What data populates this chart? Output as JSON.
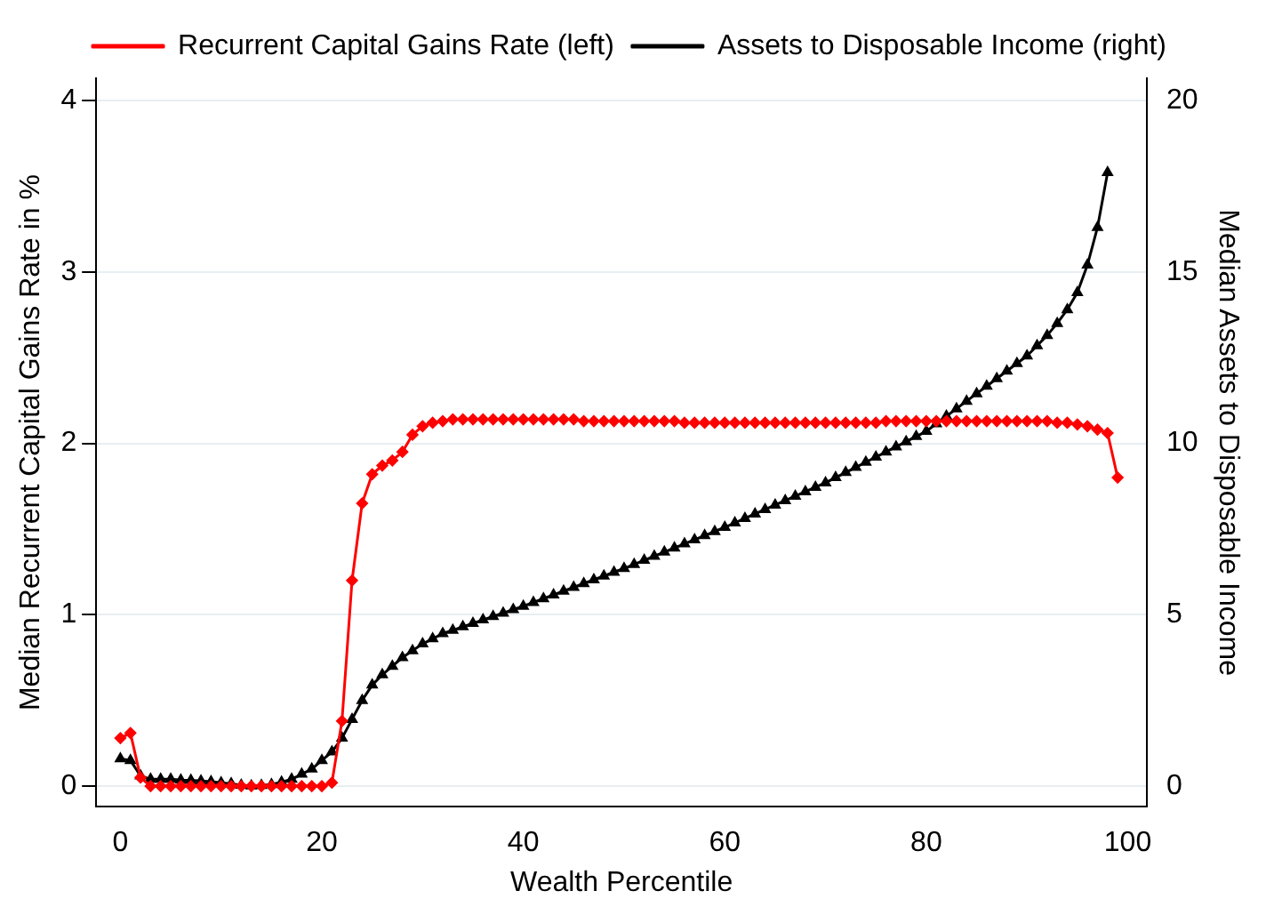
{
  "chart_data": {
    "type": "line",
    "xlabel": "Wealth Percentile",
    "ylabel": "Median Recurrent Capital Gains Rate in %",
    "y2label": "Median Assets to Disposable Income",
    "x": [
      0,
      1,
      2,
      3,
      4,
      5,
      6,
      7,
      8,
      9,
      10,
      11,
      12,
      13,
      14,
      15,
      16,
      17,
      18,
      19,
      20,
      21,
      22,
      23,
      24,
      25,
      26,
      27,
      28,
      29,
      30,
      31,
      32,
      33,
      34,
      35,
      36,
      37,
      38,
      39,
      40,
      41,
      42,
      43,
      44,
      45,
      46,
      47,
      48,
      49,
      50,
      51,
      52,
      53,
      54,
      55,
      56,
      57,
      58,
      59,
      60,
      61,
      62,
      63,
      64,
      65,
      66,
      67,
      68,
      69,
      70,
      71,
      72,
      73,
      74,
      75,
      76,
      77,
      78,
      79,
      80,
      81,
      82,
      83,
      84,
      85,
      86,
      87,
      88,
      89,
      90,
      91,
      92,
      93,
      94,
      95,
      96,
      97,
      98,
      99
    ],
    "series": [
      {
        "name": "Recurrent Capital Gains Rate (left)",
        "color": "#ff0000",
        "marker": "diamond",
        "values": [
          0.28,
          0.31,
          0.05,
          0,
          0,
          0,
          0,
          0,
          0,
          0,
          0,
          0,
          0,
          0,
          0,
          0,
          0,
          0,
          0,
          0,
          0,
          0.02,
          0.38,
          1.2,
          1.65,
          1.82,
          1.87,
          1.9,
          1.95,
          2.05,
          2.1,
          2.12,
          2.13,
          2.14,
          2.14,
          2.14,
          2.14,
          2.14,
          2.14,
          2.14,
          2.14,
          2.14,
          2.14,
          2.14,
          2.14,
          2.14,
          2.13,
          2.13,
          2.13,
          2.13,
          2.13,
          2.13,
          2.13,
          2.13,
          2.13,
          2.13,
          2.12,
          2.12,
          2.12,
          2.12,
          2.12,
          2.12,
          2.12,
          2.12,
          2.12,
          2.12,
          2.12,
          2.12,
          2.12,
          2.12,
          2.12,
          2.12,
          2.12,
          2.12,
          2.12,
          2.12,
          2.13,
          2.13,
          2.13,
          2.13,
          2.13,
          2.13,
          2.13,
          2.13,
          2.13,
          2.13,
          2.13,
          2.13,
          2.13,
          2.13,
          2.13,
          2.13,
          2.13,
          2.12,
          2.12,
          2.11,
          2.1,
          2.08,
          2.06,
          1.8
        ]
      },
      {
        "name": "Assets to Disposable Income (right)",
        "color": "#000000",
        "marker": "triangle",
        "axis": "y2",
        "values": [
          0.8,
          0.75,
          0.3,
          0.2,
          0.2,
          0.2,
          0.18,
          0.17,
          0.15,
          0.13,
          0.1,
          0.07,
          0.03,
          0.01,
          0.02,
          0.05,
          0.12,
          0.2,
          0.35,
          0.5,
          0.75,
          1.0,
          1.4,
          1.95,
          2.5,
          2.95,
          3.25,
          3.5,
          3.75,
          3.95,
          4.15,
          4.3,
          4.45,
          4.55,
          4.65,
          4.75,
          4.85,
          4.95,
          5.05,
          5.15,
          5.25,
          5.36,
          5.47,
          5.58,
          5.69,
          5.8,
          5.91,
          6.02,
          6.13,
          6.24,
          6.35,
          6.47,
          6.59,
          6.71,
          6.83,
          6.95,
          7.07,
          7.19,
          7.31,
          7.43,
          7.55,
          7.68,
          7.81,
          7.94,
          8.07,
          8.2,
          8.33,
          8.46,
          8.59,
          8.72,
          8.85,
          9.0,
          9.15,
          9.3,
          9.45,
          9.6,
          9.75,
          9.9,
          10.05,
          10.2,
          10.35,
          10.57,
          10.79,
          11.01,
          11.23,
          11.45,
          11.67,
          11.89,
          12.11,
          12.33,
          12.55,
          12.85,
          13.15,
          13.5,
          13.9,
          14.4,
          15.2,
          16.3,
          17.9,
          null
        ]
      }
    ],
    "xlim": [
      -2.4,
      101.9
    ],
    "xticks": [
      0,
      20,
      40,
      60,
      80,
      100
    ],
    "ylim": [
      -0.12,
      4.13
    ],
    "yticks": [
      0,
      1,
      2,
      3,
      4
    ],
    "y2lim": [
      -0.6,
      20.65
    ],
    "y2ticks": [
      0,
      5,
      10,
      15,
      20
    ],
    "grid": "y",
    "legend": "top",
    "line_style": "solid"
  }
}
